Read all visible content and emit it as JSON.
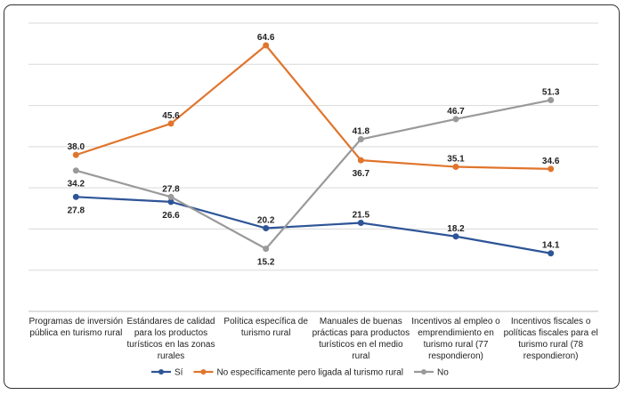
{
  "chart_data": {
    "type": "line",
    "title": "",
    "xlabel": "",
    "ylabel": "",
    "ylim": [
      0,
      70
    ],
    "grid": true,
    "legend": "bottom",
    "categories": [
      [
        "Programas de inversión",
        "pública en turismo rural"
      ],
      [
        "Estándares de calidad",
        "para los productos",
        "turísticos en las zonas",
        "rurales"
      ],
      [
        "Política específica de",
        "turismo rural"
      ],
      [
        "Manuales de buenas",
        "prácticas para productos",
        "turísticos en el medio",
        "rural"
      ],
      [
        "Incentivos al empleo o",
        "emprendimiento en",
        "turismo rural (77",
        "respondieron)"
      ],
      [
        "Incentivos fiscales o",
        "políticas fiscales para el",
        "turismo rural (78",
        "respondieron)"
      ]
    ],
    "series": [
      {
        "name": "Sí",
        "color": "#2E5597",
        "values": [
          27.8,
          26.6,
          20.2,
          21.5,
          18.2,
          14.1
        ]
      },
      {
        "name": "No específicamente pero ligada al turismo rural",
        "color": "#E0752D",
        "values": [
          38.0,
          45.6,
          64.6,
          36.7,
          35.1,
          34.6
        ]
      },
      {
        "name": "No",
        "color": "#9A9A9A",
        "values": [
          34.2,
          27.8,
          15.2,
          41.8,
          46.7,
          51.3
        ]
      }
    ]
  }
}
